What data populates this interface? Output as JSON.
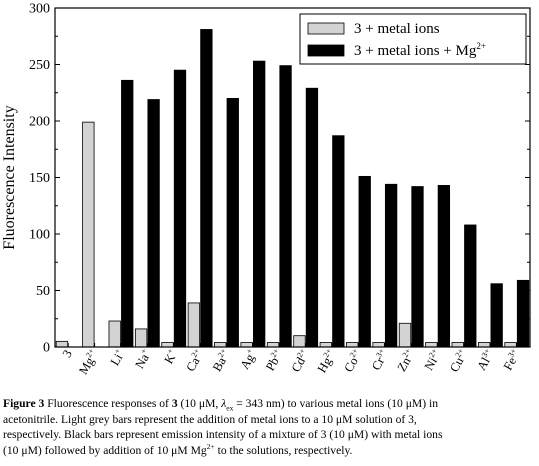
{
  "chart_data": {
    "type": "bar",
    "ylabel": "Fluorescence Intensity",
    "xlabel": "",
    "ylim": [
      0,
      300
    ],
    "yticks": [
      0,
      50,
      100,
      150,
      200,
      250,
      300
    ],
    "categories": [
      {
        "base": "3",
        "sup": ""
      },
      {
        "base": "Mg",
        "sup": "2+"
      },
      {
        "base": "Li",
        "sup": "+"
      },
      {
        "base": "Na",
        "sup": "+"
      },
      {
        "base": "K",
        "sup": "+"
      },
      {
        "base": "Ca",
        "sup": "2+"
      },
      {
        "base": "Ba",
        "sup": "2+"
      },
      {
        "base": "Ag",
        "sup": "+"
      },
      {
        "base": "Pb",
        "sup": "2+"
      },
      {
        "base": "Cd",
        "sup": "2+"
      },
      {
        "base": "Hg",
        "sup": "2+"
      },
      {
        "base": "Co",
        "sup": "2+"
      },
      {
        "base": "Cr",
        "sup": "3+"
      },
      {
        "base": "Zn",
        "sup": "2+"
      },
      {
        "base": "Ni",
        "sup": "2+"
      },
      {
        "base": "Cu",
        "sup": "2+"
      },
      {
        "base": "Al",
        "sup": "3+"
      },
      {
        "base": "Fe",
        "sup": "3+"
      }
    ],
    "series": [
      {
        "name": "3 + metal ions",
        "color": "#d3d3d3",
        "values": [
          5,
          199,
          23,
          16,
          4,
          39,
          4,
          4,
          4,
          10,
          4,
          4,
          4,
          21,
          4,
          4,
          4,
          4
        ]
      },
      {
        "name": "3 + metal ions + Mg",
        "name_sup": "2+",
        "color": "#000000",
        "values": [
          null,
          null,
          236,
          219,
          245,
          281,
          220,
          253,
          249,
          229,
          187,
          151,
          144,
          142,
          143,
          108,
          56,
          59
        ]
      }
    ],
    "legend_position": "top-right",
    "grid": false
  },
  "caption": {
    "fig_label": "Figure 3",
    "line1_a": " Fluorescence responses of ",
    "line1_b": "3",
    "line1_c": " (10 μM, ",
    "line1_d": "λ",
    "line1_e": "ex",
    "line1_f": " = 343 nm) to various metal ions (10 μM) in",
    "line2": "acetonitrile. Light grey bars represent the addition of  metal  ions   to  a 10 μM  solution of 3,",
    "line3": "respectively. Black bars represent emission intensity of a mixture of 3 (10 μM) with metal ions",
    "line4_a": "(10 μM) followed by addition of 10 μM Mg",
    "line4_b": "2+",
    "line4_c": " to the solutions, respectively."
  }
}
